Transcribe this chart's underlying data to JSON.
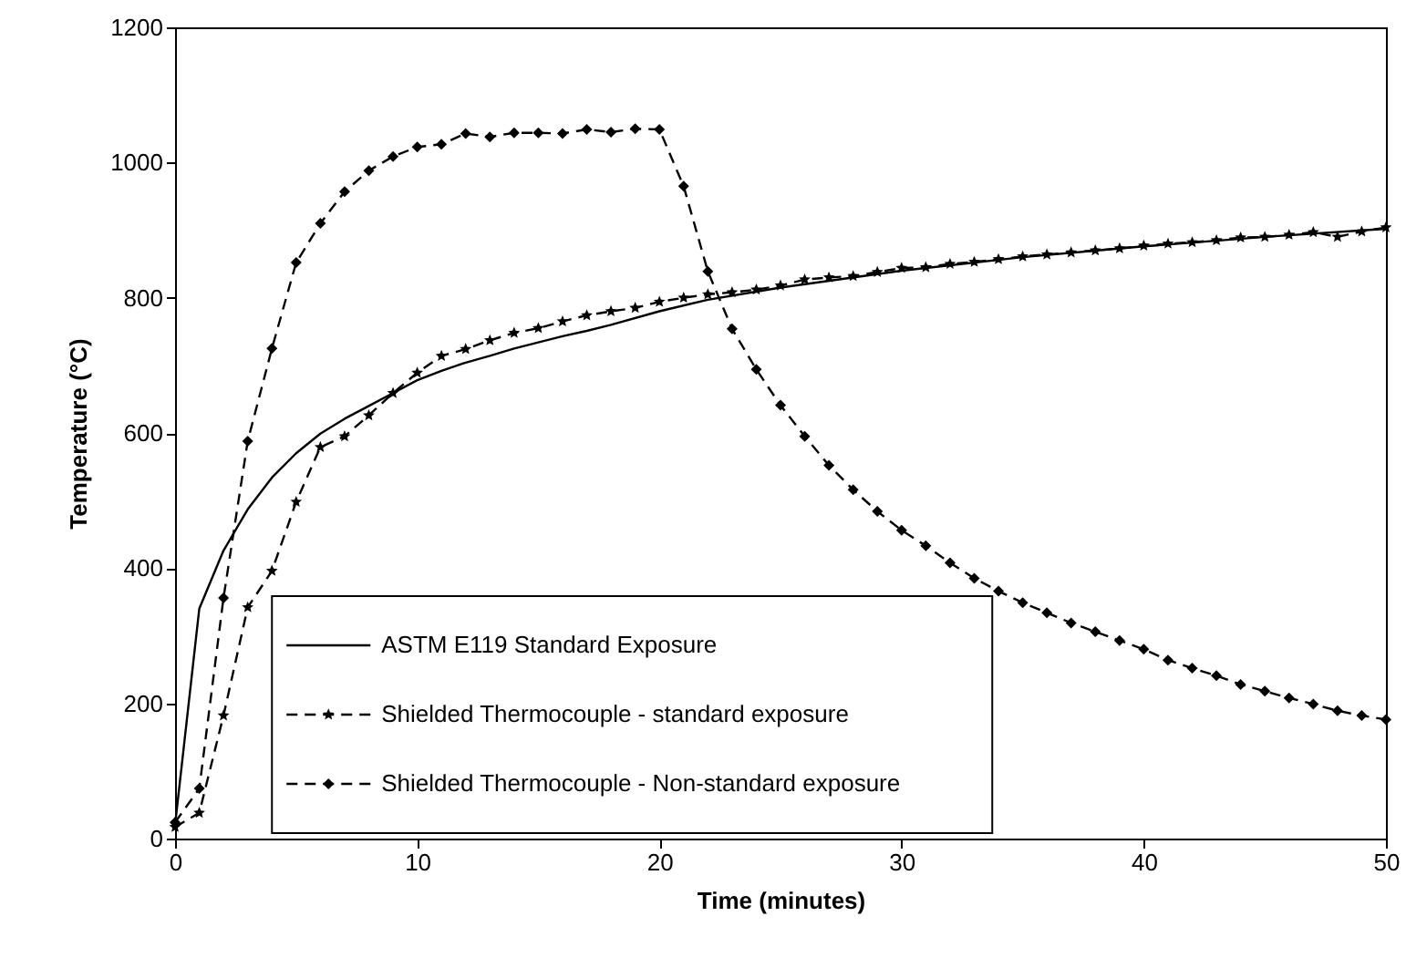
{
  "chart_data": {
    "type": "line",
    "xlabel": "Time (minutes)",
    "ylabel": "Temperature (°C)",
    "xlim": [
      0,
      50
    ],
    "xticks": [
      0,
      10,
      20,
      30,
      40,
      50
    ],
    "ylim": [
      0,
      1200
    ],
    "yticks": [
      0,
      200,
      400,
      600,
      800,
      1000,
      1200
    ],
    "grid": false,
    "legend": "bottom left",
    "series": [
      {
        "name": "ASTM E119 Standard Exposure",
        "color": "#000000",
        "marker": "none",
        "line_style": "solid",
        "x": [
          0,
          1,
          2,
          3,
          4,
          5,
          6,
          7,
          8,
          9,
          10,
          11,
          12,
          13,
          14,
          15,
          16,
          17,
          18,
          20,
          22,
          25,
          30,
          35,
          40,
          45,
          50
        ],
        "values": [
          20,
          340,
          426,
          487,
          534,
          570,
          599,
          621,
          640,
          659,
          678,
          692,
          704,
          714,
          725,
          734,
          743,
          751,
          760,
          780,
          797,
          815,
          840,
          860,
          876,
          890,
          902
        ]
      },
      {
        "name": "Shielded Thermocouple - standard exposure",
        "color": "#000000",
        "marker": "star",
        "line_style": "dashed",
        "x": [
          0,
          1,
          2,
          3,
          4,
          5,
          6,
          7,
          8,
          9,
          10,
          11,
          12,
          13,
          14,
          15,
          16,
          17,
          18,
          19,
          20,
          21,
          22,
          23,
          24,
          25,
          26,
          27,
          28,
          29,
          30,
          31,
          32,
          33,
          34,
          35,
          36,
          37,
          38,
          39,
          40,
          41,
          42,
          43,
          44,
          45,
          46,
          47,
          48,
          49,
          50
        ],
        "values": [
          17,
          38,
          182,
          342,
          396,
          498,
          579,
          595,
          626,
          659,
          689,
          714,
          724,
          737,
          748,
          755,
          765,
          774,
          780,
          785,
          794,
          800,
          805,
          808,
          812,
          818,
          827,
          830,
          832,
          838,
          844,
          845,
          850,
          853,
          857,
          861,
          864,
          867,
          870,
          873,
          877,
          880,
          882,
          885,
          889,
          890,
          893,
          897,
          890,
          898,
          904
        ]
      },
      {
        "name": "Shielded Thermocouple - Non-standard exposure",
        "color": "#000000",
        "marker": "diamond",
        "line_style": "dashed",
        "x": [
          0,
          1,
          2,
          3,
          4,
          5,
          6,
          7,
          8,
          9,
          10,
          11,
          12,
          13,
          14,
          15,
          16,
          17,
          18,
          19,
          20,
          21,
          22,
          23,
          24,
          25,
          26,
          27,
          28,
          29,
          30,
          31,
          32,
          33,
          34,
          35,
          36,
          37,
          38,
          39,
          40,
          41,
          42,
          43,
          44,
          45,
          46,
          47,
          48,
          49,
          50
        ],
        "values": [
          24,
          74,
          356,
          588,
          725,
          852,
          910,
          957,
          988,
          1009,
          1023,
          1027,
          1043,
          1038,
          1044,
          1044,
          1043,
          1049,
          1045,
          1050,
          1049,
          965,
          839,
          754,
          694,
          641,
          595,
          552,
          516,
          484,
          456,
          433,
          408,
          385,
          366,
          349,
          334,
          319,
          306,
          293,
          280,
          264,
          252,
          241,
          228,
          218,
          208,
          199,
          189,
          182,
          176
        ]
      }
    ]
  }
}
